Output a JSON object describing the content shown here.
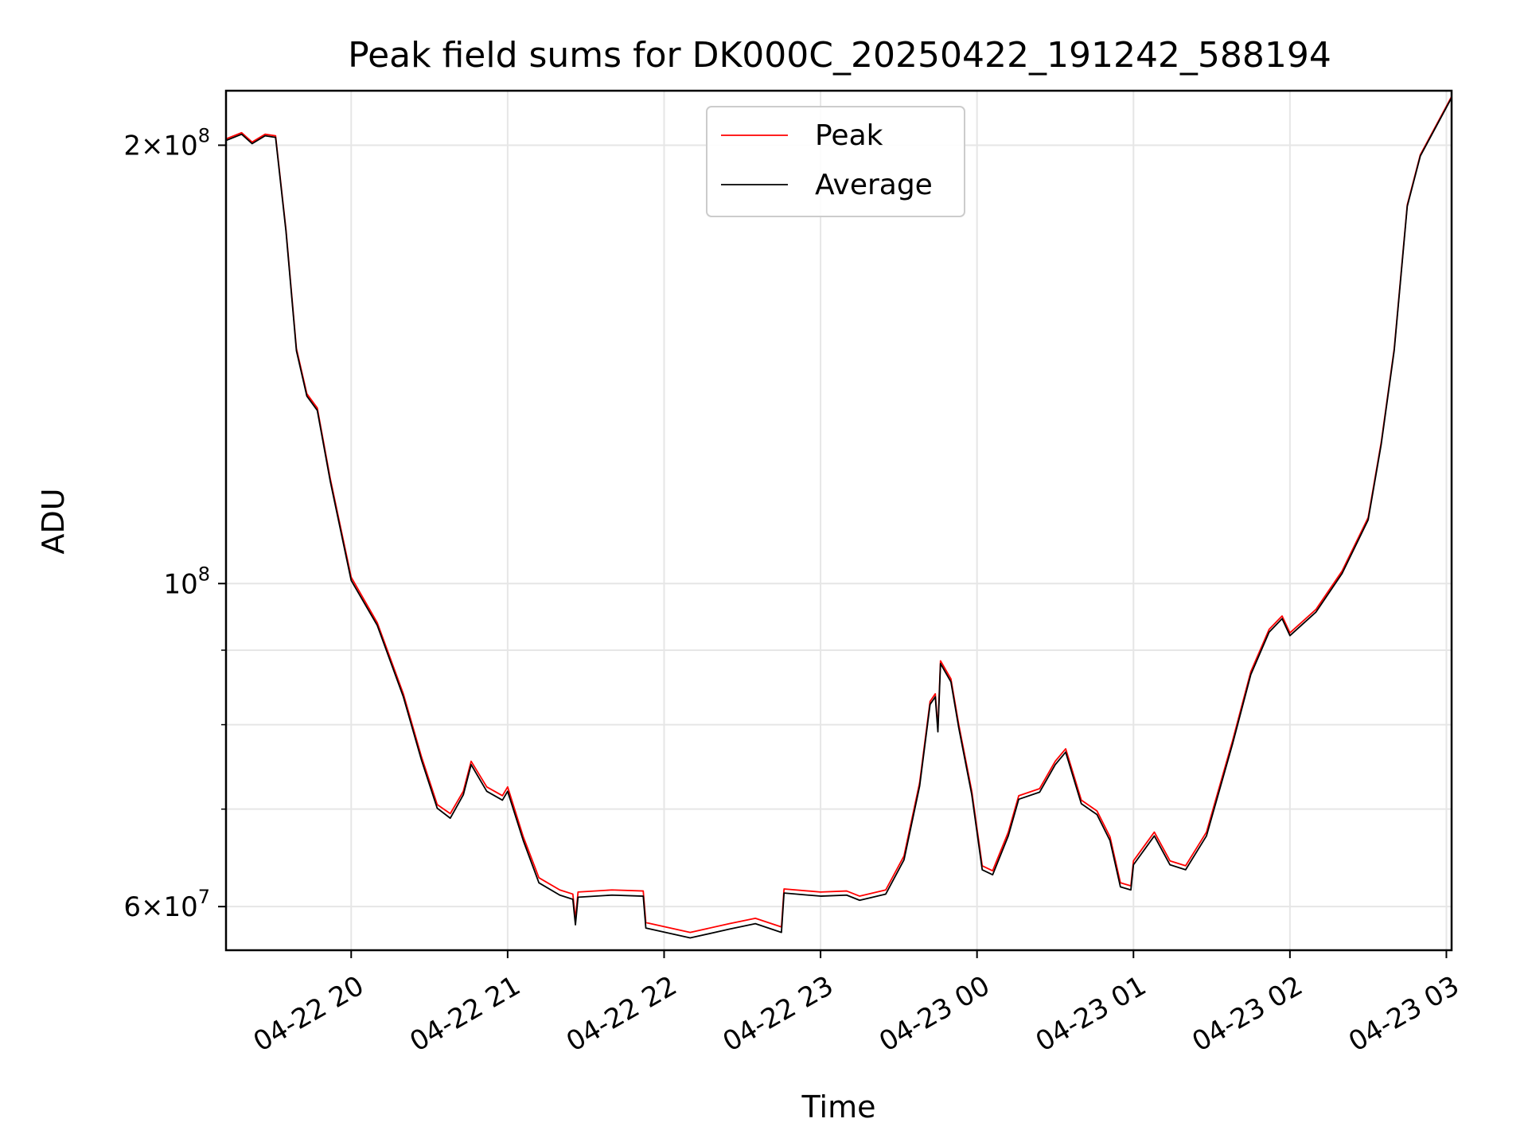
{
  "chart_data": {
    "type": "line",
    "title": "Peak field sums for DK000C_20250422_191242_588194",
    "xlabel": "Time",
    "ylabel": "ADU",
    "y_scale": "log",
    "xlim": [
      "2025-04-22 19:12",
      "2025-04-23 03:02"
    ],
    "ylim": [
      56000000,
      218000000
    ],
    "grid": true,
    "legend_position": "upper center",
    "x_tick_labels": [
      {
        "t": "2025-04-22 20:00",
        "label": "04-22 20"
      },
      {
        "t": "2025-04-22 21:00",
        "label": "04-22 21"
      },
      {
        "t": "2025-04-22 22:00",
        "label": "04-22 22"
      },
      {
        "t": "2025-04-22 23:00",
        "label": "04-22 23"
      },
      {
        "t": "2025-04-23 00:00",
        "label": "04-23 00"
      },
      {
        "t": "2025-04-23 01:00",
        "label": "04-23 01"
      },
      {
        "t": "2025-04-23 02:00",
        "label": "04-23 02"
      },
      {
        "t": "2025-04-23 03:00",
        "label": "04-23 03"
      }
    ],
    "y_major_ticks": [
      {
        "value": 60000000,
        "mantissa": "6",
        "exp": "7"
      },
      {
        "value": 100000000,
        "mantissa": "",
        "exp": "8"
      },
      {
        "value": 200000000,
        "mantissa": "2",
        "exp": "8"
      }
    ],
    "y_minor_ticks": [
      70000000,
      80000000,
      90000000
    ],
    "series": [
      {
        "name": "Peak",
        "color": "#ff0000",
        "points": [
          [
            "2025-04-22 19:12",
            202000000
          ],
          [
            "2025-04-22 19:18",
            204000000
          ],
          [
            "2025-04-22 19:22",
            201000000
          ],
          [
            "2025-04-22 19:27",
            203500000
          ],
          [
            "2025-04-22 19:31",
            203000000
          ],
          [
            "2025-04-22 19:35",
            175000000
          ],
          [
            "2025-04-22 19:39",
            145000000
          ],
          [
            "2025-04-22 19:43",
            135000000
          ],
          [
            "2025-04-22 19:47",
            132000000
          ],
          [
            "2025-04-22 19:52",
            118000000
          ],
          [
            "2025-04-22 20:00",
            101000000
          ],
          [
            "2025-04-22 20:10",
            94000000
          ],
          [
            "2025-04-22 20:20",
            84000000
          ],
          [
            "2025-04-22 20:27",
            76000000
          ],
          [
            "2025-04-22 20:33",
            70500000
          ],
          [
            "2025-04-22 20:38",
            69500000
          ],
          [
            "2025-04-22 20:43",
            72000000
          ],
          [
            "2025-04-22 20:46",
            75500000
          ],
          [
            "2025-04-22 20:52",
            72500000
          ],
          [
            "2025-04-22 20:58",
            71500000
          ],
          [
            "2025-04-22 21:00",
            72500000
          ],
          [
            "2025-04-22 21:06",
            67000000
          ],
          [
            "2025-04-22 21:12",
            62800000
          ],
          [
            "2025-04-22 21:20",
            61600000
          ],
          [
            "2025-04-22 21:25",
            61200000
          ],
          [
            "2025-04-22 21:26",
            58800000
          ],
          [
            "2025-04-22 21:27",
            61400000
          ],
          [
            "2025-04-22 21:40",
            61600000
          ],
          [
            "2025-04-22 21:52",
            61500000
          ],
          [
            "2025-04-22 21:53",
            58500000
          ],
          [
            "2025-04-22 22:10",
            57600000
          ],
          [
            "2025-04-22 22:25",
            58400000
          ],
          [
            "2025-04-22 22:35",
            58900000
          ],
          [
            "2025-04-22 22:45",
            58100000
          ],
          [
            "2025-04-22 22:46",
            61700000
          ],
          [
            "2025-04-22 23:00",
            61400000
          ],
          [
            "2025-04-22 23:10",
            61500000
          ],
          [
            "2025-04-22 23:15",
            61000000
          ],
          [
            "2025-04-22 23:25",
            61600000
          ],
          [
            "2025-04-22 23:32",
            65000000
          ],
          [
            "2025-04-22 23:38",
            73000000
          ],
          [
            "2025-04-22 23:42",
            83000000
          ],
          [
            "2025-04-22 23:44",
            84000000
          ],
          [
            "2025-04-22 23:45",
            79500000
          ],
          [
            "2025-04-22 23:46",
            88500000
          ],
          [
            "2025-04-22 23:50",
            86000000
          ],
          [
            "2025-04-22 23:53",
            80000000
          ],
          [
            "2025-04-22 23:58",
            72000000
          ],
          [
            "2025-04-23 00:02",
            64000000
          ],
          [
            "2025-04-23 00:06",
            63500000
          ],
          [
            "2025-04-23 00:12",
            67500000
          ],
          [
            "2025-04-23 00:16",
            71500000
          ],
          [
            "2025-04-23 00:24",
            72300000
          ],
          [
            "2025-04-23 00:30",
            75500000
          ],
          [
            "2025-04-23 00:34",
            77000000
          ],
          [
            "2025-04-23 00:40",
            71000000
          ],
          [
            "2025-04-23 00:46",
            69800000
          ],
          [
            "2025-04-23 00:51",
            67000000
          ],
          [
            "2025-04-23 00:55",
            62300000
          ],
          [
            "2025-04-23 00:59",
            62000000
          ],
          [
            "2025-04-23 01:00",
            64500000
          ],
          [
            "2025-04-23 01:08",
            67500000
          ],
          [
            "2025-04-23 01:14",
            64500000
          ],
          [
            "2025-04-23 01:20",
            64000000
          ],
          [
            "2025-04-23 01:28",
            67500000
          ],
          [
            "2025-04-23 01:38",
            78000000
          ],
          [
            "2025-04-23 01:45",
            87000000
          ],
          [
            "2025-04-23 01:52",
            93000000
          ],
          [
            "2025-04-23 01:57",
            95000000
          ],
          [
            "2025-04-23 02:00",
            92500000
          ],
          [
            "2025-04-23 02:10",
            96000000
          ],
          [
            "2025-04-23 02:20",
            102000000
          ],
          [
            "2025-04-23 02:30",
            111000000
          ],
          [
            "2025-04-23 02:35",
            125000000
          ],
          [
            "2025-04-23 02:40",
            145000000
          ],
          [
            "2025-04-23 02:45",
            182000000
          ],
          [
            "2025-04-23 02:50",
            197000000
          ],
          [
            "2025-04-23 03:02",
            216000000
          ]
        ]
      },
      {
        "name": "Average",
        "color": "#000000",
        "points": [
          [
            "2025-04-22 19:12",
            201500000
          ],
          [
            "2025-04-22 19:18",
            203500000
          ],
          [
            "2025-04-22 19:22",
            200500000
          ],
          [
            "2025-04-22 19:27",
            203000000
          ],
          [
            "2025-04-22 19:31",
            202500000
          ],
          [
            "2025-04-22 19:35",
            174500000
          ],
          [
            "2025-04-22 19:39",
            144500000
          ],
          [
            "2025-04-22 19:43",
            134500000
          ],
          [
            "2025-04-22 19:47",
            131500000
          ],
          [
            "2025-04-22 19:52",
            117500000
          ],
          [
            "2025-04-22 20:00",
            100500000
          ],
          [
            "2025-04-22 20:10",
            93600000
          ],
          [
            "2025-04-22 20:20",
            83600000
          ],
          [
            "2025-04-22 20:27",
            75600000
          ],
          [
            "2025-04-22 20:33",
            70100000
          ],
          [
            "2025-04-22 20:38",
            69000000
          ],
          [
            "2025-04-22 20:43",
            71600000
          ],
          [
            "2025-04-22 20:46",
            75100000
          ],
          [
            "2025-04-22 20:52",
            72000000
          ],
          [
            "2025-04-22 20:58",
            71000000
          ],
          [
            "2025-04-22 21:00",
            72000000
          ],
          [
            "2025-04-22 21:06",
            66600000
          ],
          [
            "2025-04-22 21:12",
            62300000
          ],
          [
            "2025-04-22 21:20",
            61100000
          ],
          [
            "2025-04-22 21:25",
            60700000
          ],
          [
            "2025-04-22 21:26",
            58300000
          ],
          [
            "2025-04-22 21:27",
            60900000
          ],
          [
            "2025-04-22 21:40",
            61100000
          ],
          [
            "2025-04-22 21:52",
            61000000
          ],
          [
            "2025-04-22 21:53",
            58000000
          ],
          [
            "2025-04-22 22:10",
            57100000
          ],
          [
            "2025-04-22 22:25",
            57900000
          ],
          [
            "2025-04-22 22:35",
            58400000
          ],
          [
            "2025-04-22 22:45",
            57600000
          ],
          [
            "2025-04-22 22:46",
            61300000
          ],
          [
            "2025-04-22 23:00",
            61000000
          ],
          [
            "2025-04-22 23:10",
            61100000
          ],
          [
            "2025-04-22 23:15",
            60600000
          ],
          [
            "2025-04-22 23:25",
            61200000
          ],
          [
            "2025-04-22 23:32",
            64600000
          ],
          [
            "2025-04-22 23:38",
            72600000
          ],
          [
            "2025-04-22 23:42",
            82600000
          ],
          [
            "2025-04-22 23:44",
            83600000
          ],
          [
            "2025-04-22 23:45",
            79100000
          ],
          [
            "2025-04-22 23:46",
            88100000
          ],
          [
            "2025-04-22 23:50",
            85600000
          ],
          [
            "2025-04-22 23:53",
            79600000
          ],
          [
            "2025-04-22 23:58",
            71600000
          ],
          [
            "2025-04-23 00:02",
            63600000
          ],
          [
            "2025-04-23 00:06",
            63100000
          ],
          [
            "2025-04-23 00:12",
            67100000
          ],
          [
            "2025-04-23 00:16",
            71100000
          ],
          [
            "2025-04-23 00:24",
            71900000
          ],
          [
            "2025-04-23 00:30",
            75100000
          ],
          [
            "2025-04-23 00:34",
            76600000
          ],
          [
            "2025-04-23 00:40",
            70600000
          ],
          [
            "2025-04-23 00:46",
            69400000
          ],
          [
            "2025-04-23 00:51",
            66600000
          ],
          [
            "2025-04-23 00:55",
            61900000
          ],
          [
            "2025-04-23 00:59",
            61600000
          ],
          [
            "2025-04-23 01:00",
            64100000
          ],
          [
            "2025-04-23 01:08",
            67100000
          ],
          [
            "2025-04-23 01:14",
            64100000
          ],
          [
            "2025-04-23 01:20",
            63600000
          ],
          [
            "2025-04-23 01:28",
            67100000
          ],
          [
            "2025-04-23 01:38",
            77600000
          ],
          [
            "2025-04-23 01:45",
            86600000
          ],
          [
            "2025-04-23 01:52",
            92600000
          ],
          [
            "2025-04-23 01:57",
            94600000
          ],
          [
            "2025-04-23 02:00",
            92100000
          ],
          [
            "2025-04-23 02:10",
            95600000
          ],
          [
            "2025-04-23 02:20",
            101600000
          ],
          [
            "2025-04-23 02:30",
            110600000
          ],
          [
            "2025-04-23 02:35",
            124600000
          ],
          [
            "2025-04-23 02:40",
            144600000
          ],
          [
            "2025-04-23 02:45",
            181600000
          ],
          [
            "2025-04-23 02:50",
            196600000
          ],
          [
            "2025-04-23 03:02",
            215600000
          ]
        ]
      }
    ]
  }
}
